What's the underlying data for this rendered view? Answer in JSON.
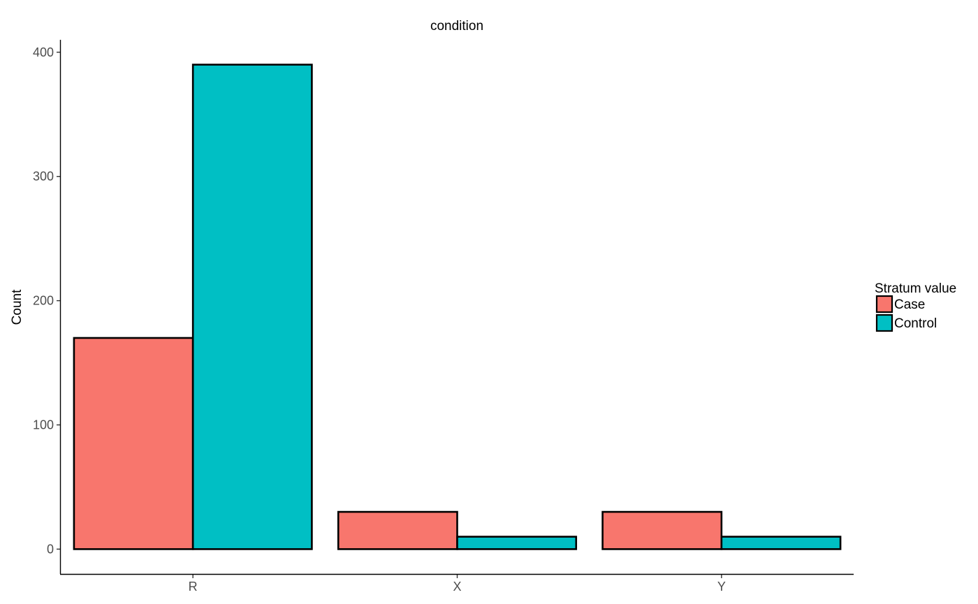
{
  "chart_data": {
    "type": "bar",
    "title": "condition",
    "xlabel": "",
    "ylabel": "Count",
    "categories": [
      "R",
      "X",
      "Y"
    ],
    "series": [
      {
        "name": "Case",
        "color": "#F8766D",
        "values": [
          170,
          30,
          30
        ]
      },
      {
        "name": "Control",
        "color": "#00BFC4",
        "values": [
          390,
          10,
          10
        ]
      }
    ],
    "ylim": [
      -20,
      410
    ],
    "yticks": [
      0,
      100,
      200,
      300,
      400
    ],
    "grid": false,
    "legend": {
      "title": "Stratum value",
      "position": "right"
    }
  }
}
